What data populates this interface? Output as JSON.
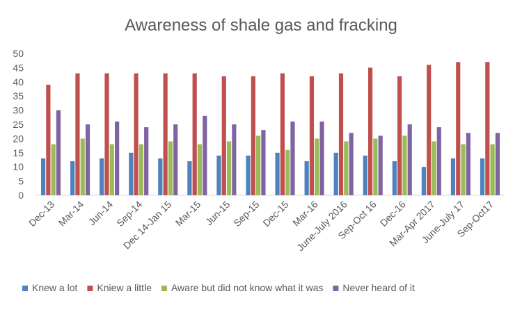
{
  "chart_data": {
    "type": "bar",
    "title": "Awareness of shale gas and fracking",
    "xlabel": "",
    "ylabel": "",
    "ylim": [
      0,
      50
    ],
    "yticks": [
      0,
      5,
      10,
      15,
      20,
      25,
      30,
      35,
      40,
      45,
      50
    ],
    "grid": false,
    "legend_position": "bottom",
    "categories": [
      "Dec-13",
      "Mar-14",
      "Jun-14",
      "Sep-14",
      "Dec 14-Jan 15",
      "Mar-15",
      "Jun-15",
      "Sep-15",
      "Dec-15",
      "Mar-16",
      "June-July 2016",
      "Sep-Oct 16",
      "Dec-16",
      "Mar-Apr 2017",
      "June-July 17",
      "Sep-Oct17"
    ],
    "series": [
      {
        "name": "Knew a lot",
        "color": "#4f81bd",
        "values": [
          13,
          12,
          13,
          15,
          13,
          12,
          14,
          14,
          15,
          12,
          15,
          14,
          12,
          10,
          13,
          13
        ]
      },
      {
        "name": "Kniew a little",
        "color": "#c0504d",
        "values": [
          39,
          43,
          43,
          43,
          43,
          43,
          42,
          42,
          43,
          42,
          43,
          45,
          42,
          46,
          47,
          47
        ]
      },
      {
        "name": "Aware but did not know what it was",
        "color": "#9bbb59",
        "values": [
          18,
          20,
          18,
          18,
          19,
          18,
          19,
          21,
          16,
          20,
          19,
          20,
          21,
          19,
          18,
          18
        ]
      },
      {
        "name": "Never heard of it",
        "color": "#8064a2",
        "values": [
          30,
          25,
          26,
          24,
          25,
          28,
          25,
          23,
          26,
          26,
          22,
          21,
          25,
          24,
          22,
          22
        ]
      }
    ]
  }
}
